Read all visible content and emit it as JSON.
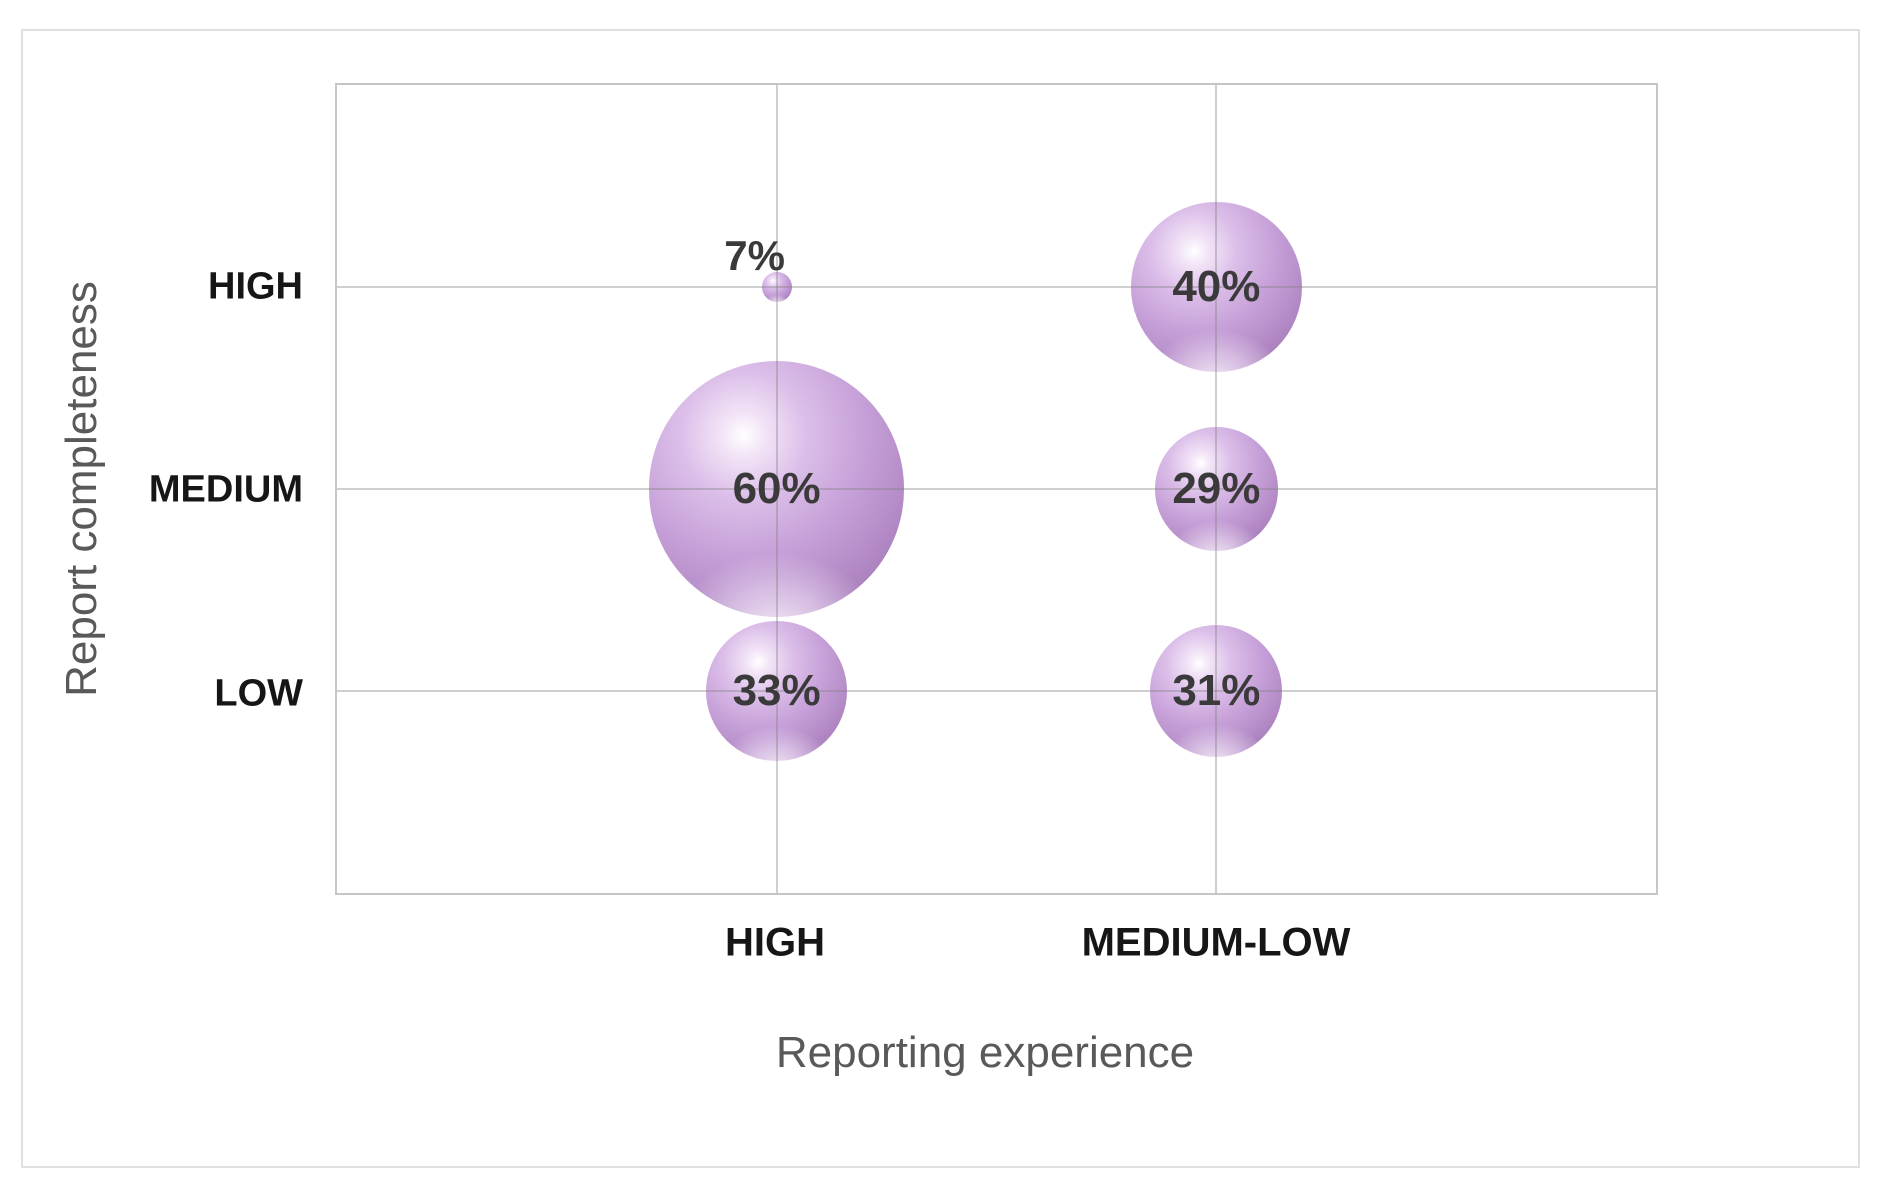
{
  "figure": {
    "background_color": "#ffffff",
    "border_color": "#e0e0e0"
  },
  "chart_data": {
    "type": "bubble",
    "title": "",
    "xlabel": "Reporting experience",
    "ylabel": "Report completeness",
    "x_categories": [
      "HIGH",
      "MEDIUM-LOW"
    ],
    "y_categories": [
      "HIGH",
      "MEDIUM",
      "LOW"
    ],
    "points": [
      {
        "x": "HIGH",
        "y": "HIGH",
        "value": 7,
        "label": "7%",
        "label_placement": "above"
      },
      {
        "x": "HIGH",
        "y": "MEDIUM",
        "value": 60,
        "label": "60%",
        "label_placement": "center"
      },
      {
        "x": "HIGH",
        "y": "LOW",
        "value": 33,
        "label": "33%",
        "label_placement": "center"
      },
      {
        "x": "MEDIUM-LOW",
        "y": "HIGH",
        "value": 40,
        "label": "40%",
        "label_placement": "center"
      },
      {
        "x": "MEDIUM-LOW",
        "y": "MEDIUM",
        "value": 29,
        "label": "29%",
        "label_placement": "center"
      },
      {
        "x": "MEDIUM-LOW",
        "y": "LOW",
        "value": 31,
        "label": "31%",
        "label_placement": "center"
      }
    ],
    "bubble_color": "#c6a0d8",
    "label_color": "#3a3a3a",
    "gridline_color": "#d9d9d9",
    "gridlines": true,
    "legend": false,
    "x_positions": [
      0.3333,
      0.6667
    ],
    "y_positions": [
      0.25,
      0.5,
      0.75
    ],
    "radius_px_per_percent": 2.13
  }
}
